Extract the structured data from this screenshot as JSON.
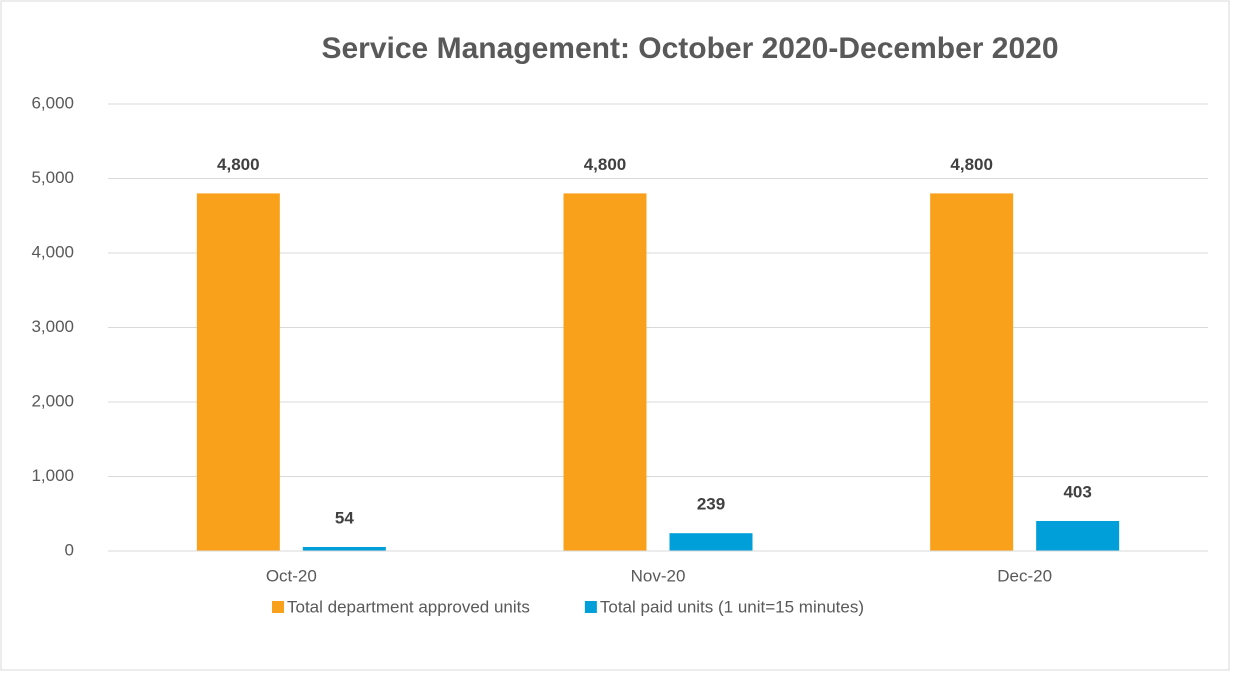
{
  "chart_data": {
    "type": "bar",
    "title": "Service Management: October 2020-December 2020",
    "categories": [
      "Oct-20",
      "Nov-20",
      "Dec-20"
    ],
    "series": [
      {
        "name": "Total department approved units",
        "color": "#F9A11B",
        "values": [
          4800,
          4800,
          4800
        ],
        "value_labels": [
          "4,800",
          "4,800",
          "4,800"
        ]
      },
      {
        "name": "Total paid units (1 unit=15 minutes)",
        "color": "#009FDA",
        "values": [
          54,
          239,
          403
        ]
      }
    ],
    "ylim": [
      0,
      6000
    ],
    "yticks": [
      0,
      {
        "value": 1000,
        "label": "1,000"
      },
      {
        "value": 2000,
        "label": "2,000"
      },
      {
        "value": 3000,
        "label": "3,000"
      },
      {
        "value": 4000,
        "label": "4,000"
      },
      {
        "value": 5000,
        "label": "5,000"
      },
      {
        "value": 6000,
        "label": "6,000"
      }
    ],
    "grid": true,
    "legend": "bottom"
  }
}
